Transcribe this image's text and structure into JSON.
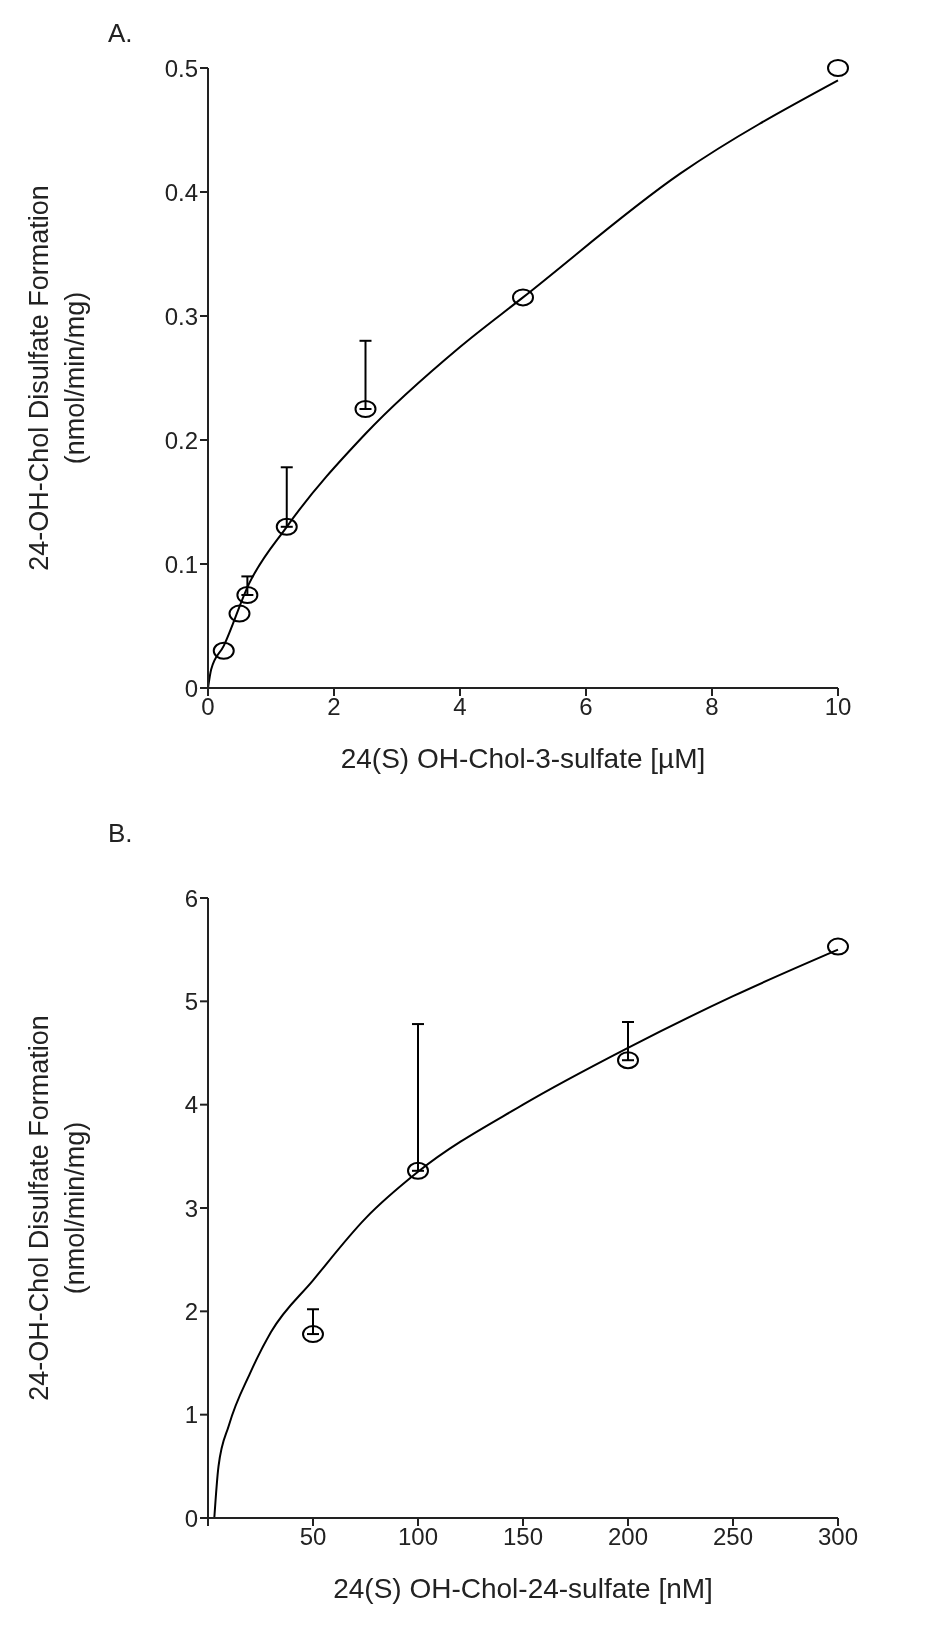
{
  "chart_data": [
    {
      "type": "scatter",
      "title": "A.",
      "xlabel": "24(S) OH-Chol-3-sulfate [µM]",
      "ylabel": "24-OH-Chol Disulfate Formation\n(nmol/min/mg)",
      "x": [
        0.25,
        0.5,
        0.625,
        1.25,
        2.5,
        5,
        10
      ],
      "xlim": [
        0,
        10
      ],
      "xticks": [
        0,
        2,
        4,
        6,
        8,
        10
      ],
      "ylim": [
        0,
        0.5
      ],
      "yticks": [
        0,
        0.1,
        0.2,
        0.3,
        0.4,
        0.5
      ],
      "series": [
        {
          "marker": "circle",
          "color": "#000000",
          "values": [
            0.03,
            0.06,
            0.075,
            0.13,
            0.225,
            0.315,
            0.5
          ],
          "errors": [
            null,
            null,
            [
              0.075,
              0.09
            ],
            [
              0.13,
              0.178
            ],
            [
              0.225,
              0.28
            ],
            null,
            null
          ]
        },
        {
          "type": "line",
          "color": "#000000",
          "x": [
            0,
            0.05,
            0.25,
            0.65,
            1.25,
            2.5,
            4,
            5,
            7.5,
            10
          ],
          "values": [
            0,
            0.015,
            0.034,
            0.084,
            0.13,
            0.205,
            0.275,
            0.315,
            0.415,
            0.49
          ]
        }
      ]
    },
    {
      "type": "scatter",
      "title": "B.",
      "xlabel": "24(S) OH-Chol-24-sulfate [nM]",
      "ylabel": "24-OH-Chol Disulfate Formation\n(nmol/min/mg)",
      "x": [
        50,
        100,
        200,
        300
      ],
      "xlim": [
        0,
        300
      ],
      "xticks": [
        {
          "value": 0,
          "label": null
        },
        50,
        100,
        150,
        200,
        250,
        300
      ],
      "ylim": [
        0,
        6
      ],
      "yticks": [
        0,
        1,
        2,
        3,
        4,
        5,
        6
      ],
      "series": [
        {
          "marker": "circle",
          "color": "#000000",
          "values": [
            1.78,
            3.36,
            4.43,
            5.53
          ],
          "errors": [
            [
              1.78,
              2.02
            ],
            [
              3.36,
              4.78
            ],
            [
              4.43,
              4.8
            ],
            null
          ]
        },
        {
          "type": "line",
          "color": "#000000",
          "x": [
            3,
            5,
            10,
            20,
            30,
            50,
            75,
            100,
            150,
            200,
            250,
            300
          ],
          "values": [
            0,
            0.5,
            0.9,
            1.4,
            1.8,
            2.3,
            2.9,
            3.35,
            4.0,
            4.55,
            5.05,
            5.5
          ]
        }
      ]
    }
  ]
}
